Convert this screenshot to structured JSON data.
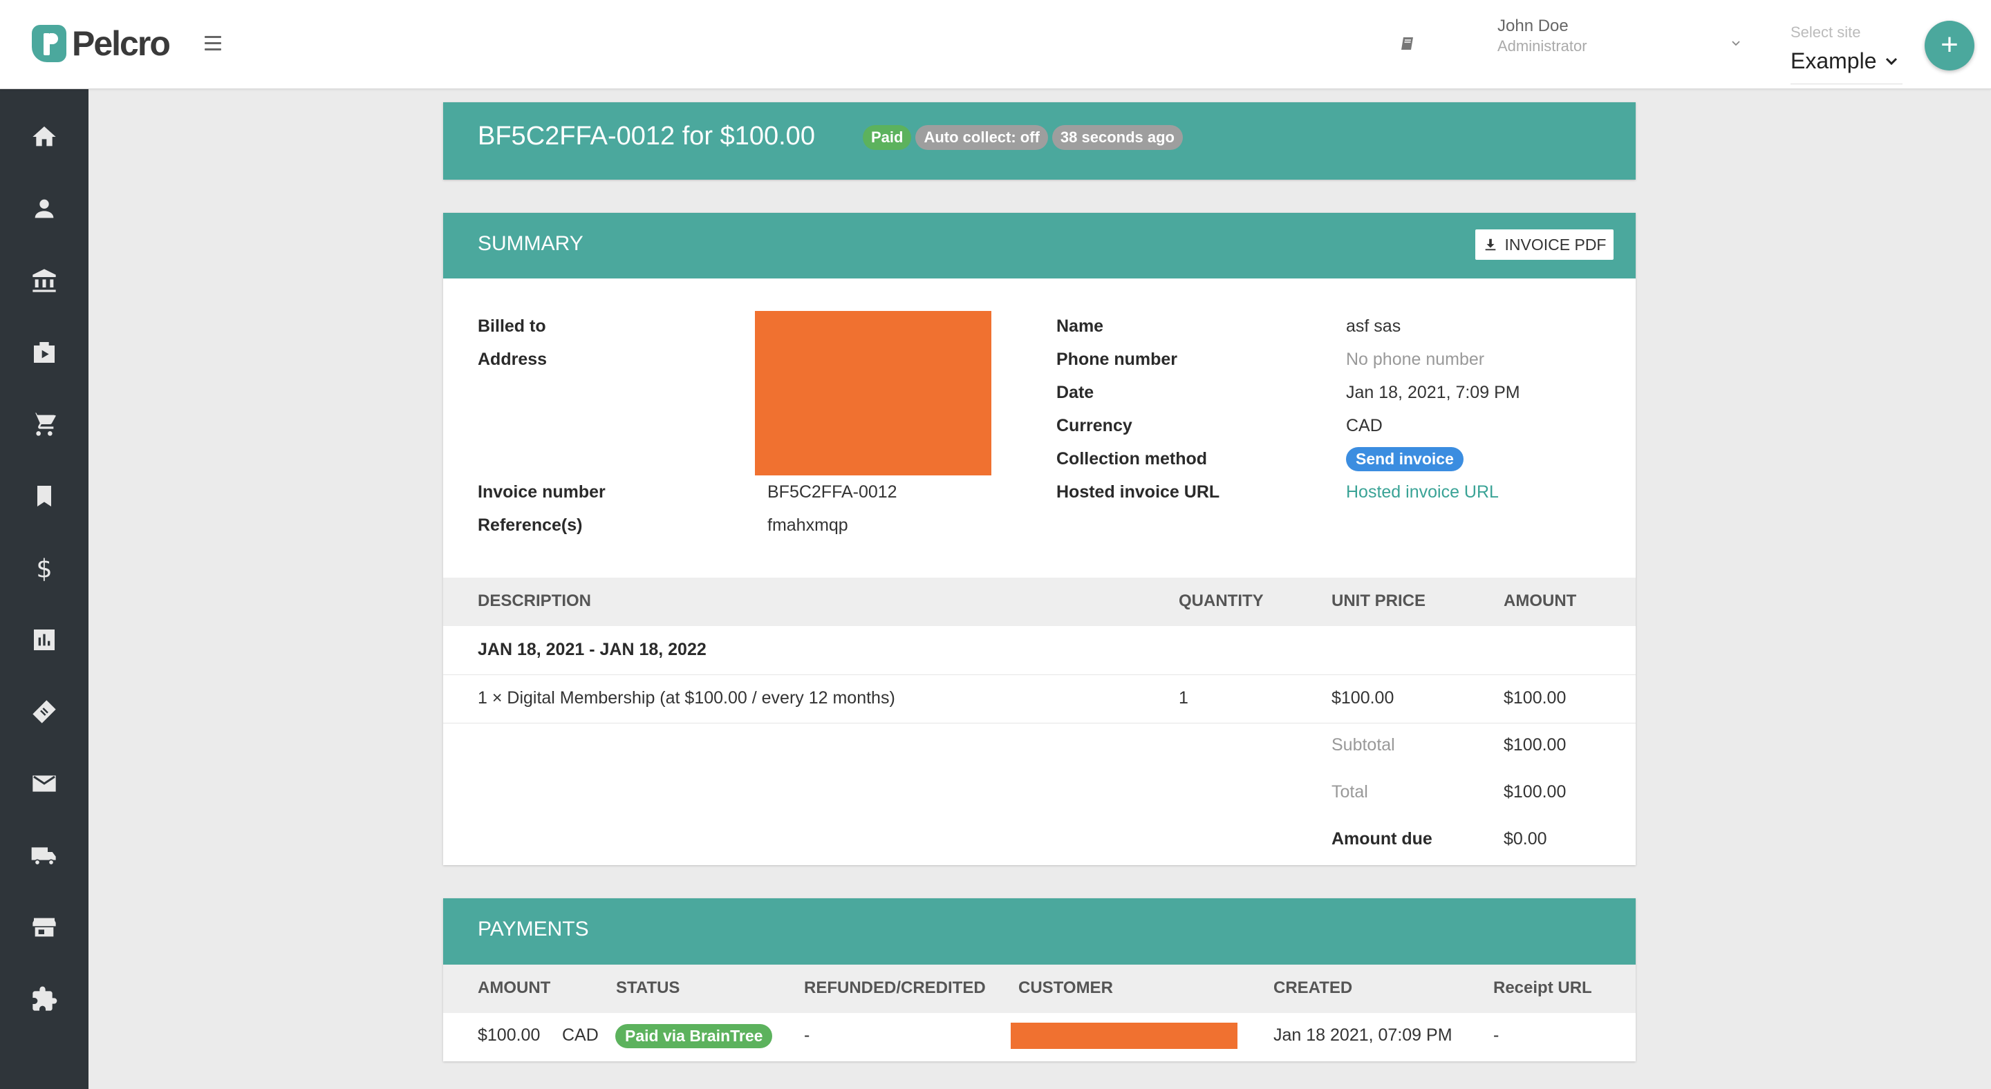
{
  "header": {
    "logo_text": "Pelcro",
    "user_name": "John Doe",
    "user_role": "Administrator",
    "site_label": "Select site",
    "site_value": "Example",
    "fab_label": "+"
  },
  "sidebar": {
    "items": [
      "home-icon",
      "person-icon",
      "bank-icon",
      "video-icon",
      "cart-icon",
      "bookmark-icon",
      "dollar-icon",
      "chart-icon",
      "ticket-icon",
      "mail-icon",
      "truck-icon",
      "store-icon",
      "extension-icon"
    ]
  },
  "invoice": {
    "title": "BF5C2FFA-0012 for $100.00",
    "badges": [
      "Paid",
      "Auto collect: off",
      "38 seconds ago"
    ]
  },
  "summary": {
    "title": "SUMMARY",
    "pdf_button": "INVOICE PDF",
    "left": {
      "billed_to_label": "Billed to",
      "address_label": "Address",
      "invoice_number_label": "Invoice number",
      "invoice_number": "BF5C2FFA-0012",
      "references_label": "Reference(s)",
      "references": "fmahxmqp"
    },
    "right": {
      "name_label": "Name",
      "name": "asf sas",
      "phone_label": "Phone number",
      "phone": "No phone number",
      "date_label": "Date",
      "date": "Jan 18, 2021, 7:09 PM",
      "currency_label": "Currency",
      "currency": "CAD",
      "collection_label": "Collection method",
      "collection": "Send invoice",
      "hosted_label": "Hosted invoice URL",
      "hosted": "Hosted invoice URL"
    },
    "table": {
      "headers": [
        "DESCRIPTION",
        "QUANTITY",
        "UNIT PRICE",
        "AMOUNT"
      ],
      "period": "JAN 18, 2021 - JAN 18, 2022",
      "line": {
        "description": "1 × Digital Membership (at $100.00 / every 12 months)",
        "quantity": "1",
        "unit_price": "$100.00",
        "amount": "$100.00"
      },
      "subtotal_label": "Subtotal",
      "subtotal": "$100.00",
      "total_label": "Total",
      "total": "$100.00",
      "due_label": "Amount due",
      "due": "$0.00"
    }
  },
  "payments": {
    "title": "PAYMENTS",
    "headers": [
      "AMOUNT",
      "STATUS",
      "REFUNDED/CREDITED",
      "CUSTOMER",
      "CREATED",
      "Receipt URL"
    ],
    "row": {
      "amount": "$100.00",
      "currency": "CAD",
      "status": "Paid via BrainTree",
      "refunded": "-",
      "created": "Jan 18 2021, 07:09 PM",
      "receipt": "-"
    }
  },
  "colors": {
    "accent": "#4ba89d",
    "sidebar": "#2f353a",
    "redaction": "#f07130",
    "badge_green": "#5cb25d",
    "badge_blue": "#3b8de0"
  }
}
